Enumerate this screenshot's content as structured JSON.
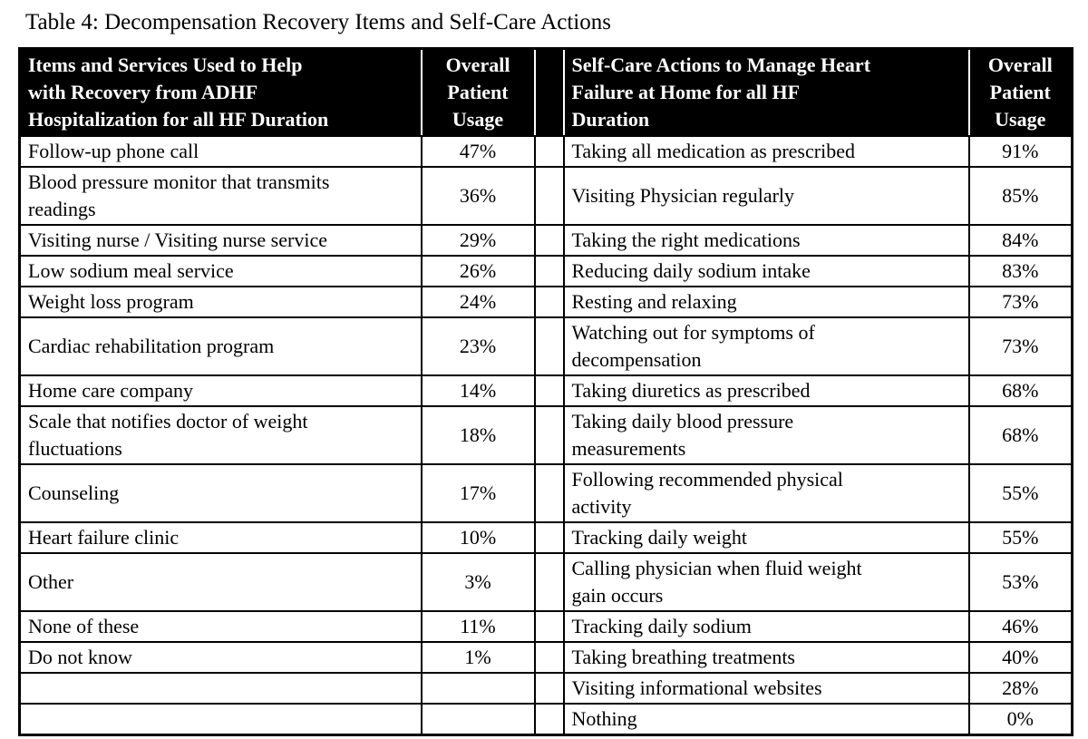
{
  "caption": "Table 4: Decompensation Recovery Items and Self-Care Actions",
  "colors": {
    "page_bg": "#ffffff",
    "header_bg": "#000000",
    "header_text": "#ffffff",
    "body_text": "#000000",
    "border": "#000000"
  },
  "table": {
    "headers": {
      "left_item": "Items and Services Used to Help\nwith Recovery from ADHF\nHospitalization for all HF Duration",
      "left_usage": "Overall\nPatient\nUsage",
      "right_item": "Self-Care Actions to Manage Heart\nFailure at Home for all HF\nDuration",
      "right_usage": "Overall\nPatient\nUsage"
    },
    "rows": [
      {
        "left_item": "Follow-up phone call",
        "left_usage": "47%",
        "right_item": "Taking all medication as prescribed",
        "right_usage": "91%"
      },
      {
        "left_item": "Blood pressure monitor that transmits\nreadings",
        "left_usage": "36%",
        "right_item": "Visiting Physician regularly",
        "right_usage": "85%"
      },
      {
        "left_item": "Visiting nurse / Visiting nurse service",
        "left_usage": "29%",
        "right_item": "Taking the right medications",
        "right_usage": "84%"
      },
      {
        "left_item": "Low sodium meal service",
        "left_usage": "26%",
        "right_item": "Reducing daily sodium intake",
        "right_usage": "83%"
      },
      {
        "left_item": "Weight loss program",
        "left_usage": "24%",
        "right_item": "Resting and relaxing",
        "right_usage": "73%"
      },
      {
        "left_item": "Cardiac rehabilitation program",
        "left_usage": "23%",
        "right_item": "Watching out for symptoms of\ndecompensation",
        "right_usage": "73%"
      },
      {
        "left_item": "Home care company",
        "left_usage": "14%",
        "right_item": "Taking diuretics as prescribed",
        "right_usage": "68%"
      },
      {
        "left_item": "Scale that notifies doctor of weight\nfluctuations",
        "left_usage": "18%",
        "right_item": "Taking daily blood pressure\nmeasurements",
        "right_usage": "68%"
      },
      {
        "left_item": "Counseling",
        "left_usage": "17%",
        "right_item": "Following recommended physical\nactivity",
        "right_usage": "55%"
      },
      {
        "left_item": "Heart failure clinic",
        "left_usage": "10%",
        "right_item": "Tracking daily weight",
        "right_usage": "55%"
      },
      {
        "left_item": "Other",
        "left_usage": "3%",
        "right_item": "Calling physician when fluid weight\ngain occurs",
        "right_usage": "53%"
      },
      {
        "left_item": "None of these",
        "left_usage": "11%",
        "right_item": "Tracking daily sodium",
        "right_usage": "46%"
      },
      {
        "left_item": "Do not know",
        "left_usage": "1%",
        "right_item": "Taking breathing treatments",
        "right_usage": "40%"
      },
      {
        "left_item": "",
        "left_usage": "",
        "right_item": "Visiting informational websites",
        "right_usage": "28%"
      },
      {
        "left_item": "",
        "left_usage": "",
        "right_item": "Nothing",
        "right_usage": "0%"
      }
    ]
  }
}
